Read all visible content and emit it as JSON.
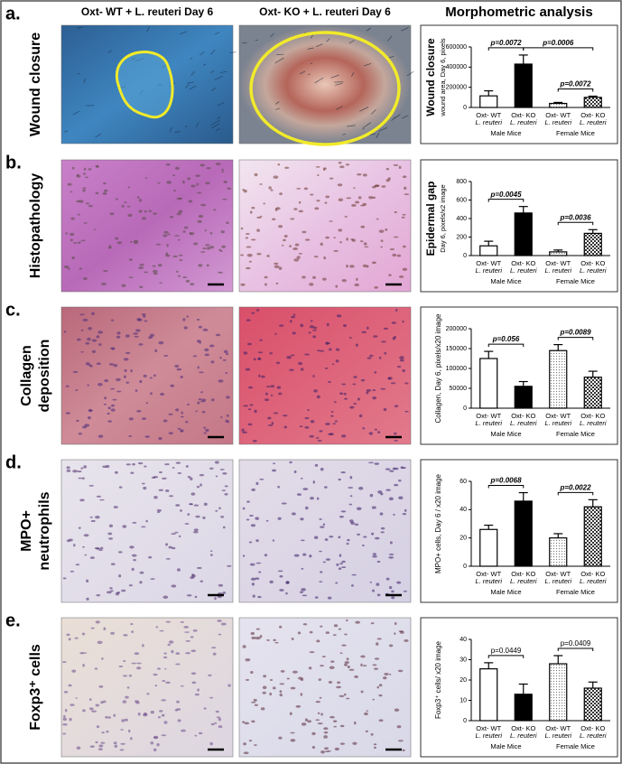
{
  "column_headers": [
    "Oxt- WT + L. reuteri Day 6",
    "Oxt- KO + L. reuteri Day 6",
    "Morphometric analysis"
  ],
  "panels": [
    {
      "letter": "a.",
      "label": [
        "Wound closure"
      ]
    },
    {
      "letter": "b.",
      "label": [
        "Histopathology"
      ]
    },
    {
      "letter": "c.",
      "label": [
        "Collagen",
        "deposition"
      ]
    },
    {
      "letter": "d.",
      "label": [
        "MPO+",
        "neutrophils"
      ]
    },
    {
      "letter": "e.",
      "label": [
        "Foxp3⁺ cells"
      ]
    }
  ],
  "chart_data": [
    {
      "type": "bar",
      "ylabel": "Wound closure",
      "ylabel_sub": "wound area, Day 6, pixels",
      "categories": [
        "Oxt- WT",
        "Oxt- KO",
        "Oxt- WT",
        "Oxt- KO"
      ],
      "category_sublabel": "L. reuteri",
      "groups": [
        "Male Mice",
        "Female Mice"
      ],
      "values": [
        115000,
        430000,
        40000,
        100000
      ],
      "errors": [
        50000,
        90000,
        10000,
        12000
      ],
      "bar_fills": [
        "#ffffff",
        "#000000",
        "dots",
        "checker"
      ],
      "ylim": [
        0,
        600000
      ],
      "yticks": [
        0,
        200000,
        400000,
        600000
      ],
      "comparisons": [
        {
          "label": "p=0.0072",
          "between": [
            0,
            1
          ]
        },
        {
          "label": "p=0.0006",
          "between": [
            1,
            3
          ]
        },
        {
          "label": "p=0.0072",
          "between": [
            2,
            3
          ]
        }
      ],
      "comparison_style": "bold-italic"
    },
    {
      "type": "bar",
      "ylabel": "Epidermal gap",
      "ylabel_sub": "Day 6, pixels/x2 image",
      "categories": [
        "Oxt- WT",
        "Oxt- KO",
        "Oxt- WT",
        "Oxt- KO"
      ],
      "category_sublabel": "L. reuteri",
      "groups": [
        "Male Mice",
        "Female Mice"
      ],
      "values": [
        105,
        460,
        40,
        240
      ],
      "errors": [
        50,
        70,
        20,
        40
      ],
      "bar_fills": [
        "#ffffff",
        "#000000",
        "dots",
        "checker"
      ],
      "ylim": [
        0,
        800
      ],
      "yticks": [
        0,
        200,
        400,
        600,
        800
      ],
      "comparisons": [
        {
          "label": "p=0.0045",
          "between": [
            0,
            1
          ]
        },
        {
          "label": "p=0.0036",
          "between": [
            2,
            3
          ]
        }
      ],
      "comparison_style": "bold-italic"
    },
    {
      "type": "bar",
      "ylabel": "Collagen, Day 6, pixels/x20 image",
      "categories": [
        "Oxt- WT",
        "Oxt- KO",
        "Oxt- WT",
        "Oxt- KO"
      ],
      "category_sublabel": "L. reuteri",
      "groups": [
        "Male Mice",
        "Female Mice"
      ],
      "values": [
        125000,
        55000,
        145000,
        78000
      ],
      "errors": [
        18000,
        12000,
        15000,
        15000
      ],
      "bar_fills": [
        "#ffffff",
        "#000000",
        "dots",
        "checker"
      ],
      "ylim": [
        0,
        200000
      ],
      "yticks": [
        0,
        50000,
        100000,
        150000,
        200000
      ],
      "comparisons": [
        {
          "label": "p=0.056",
          "between": [
            0,
            1
          ]
        },
        {
          "label": "p=0.0089",
          "between": [
            2,
            3
          ]
        }
      ],
      "comparison_style": "bold-italic"
    },
    {
      "type": "bar",
      "ylabel": "MPO+ cells, Day 6 / x20 image",
      "categories": [
        "Oxt- WT",
        "Oxt- KO",
        "Oxt- WT",
        "Oxt- KO"
      ],
      "category_sublabel": "L. reuteri",
      "groups": [
        "Male Mice",
        "Female Mice"
      ],
      "values": [
        26,
        46,
        20,
        42
      ],
      "errors": [
        3,
        6,
        3,
        5
      ],
      "bar_fills": [
        "#ffffff",
        "#000000",
        "dots",
        "checker"
      ],
      "ylim": [
        0,
        60
      ],
      "yticks": [
        0,
        20,
        40,
        60
      ],
      "comparisons": [
        {
          "label": "p=0.0068",
          "between": [
            0,
            1
          ]
        },
        {
          "label": "p=0.0022",
          "between": [
            2,
            3
          ]
        }
      ],
      "comparison_style": "bold-italic"
    },
    {
      "type": "bar",
      "ylabel": "Foxp3⁺ cells/ x20 image",
      "categories": [
        "Oxt- WT",
        "Oxt- KO",
        "Oxt- WT",
        "Oxt- KO"
      ],
      "category_sublabel": "L. reuteri",
      "groups": [
        "Male Mice",
        "Female Mice"
      ],
      "values": [
        25.5,
        13,
        28,
        16
      ],
      "errors": [
        3,
        5,
        4,
        3
      ],
      "bar_fills": [
        "#ffffff",
        "#000000",
        "dots",
        "checker"
      ],
      "ylim": [
        0,
        40
      ],
      "yticks": [
        0,
        10,
        20,
        30,
        40
      ],
      "comparisons": [
        {
          "label": "p=0.0449",
          "between": [
            0,
            1
          ]
        },
        {
          "label": "p=0.0409",
          "between": [
            2,
            3
          ]
        }
      ],
      "comparison_style": "plain"
    }
  ]
}
